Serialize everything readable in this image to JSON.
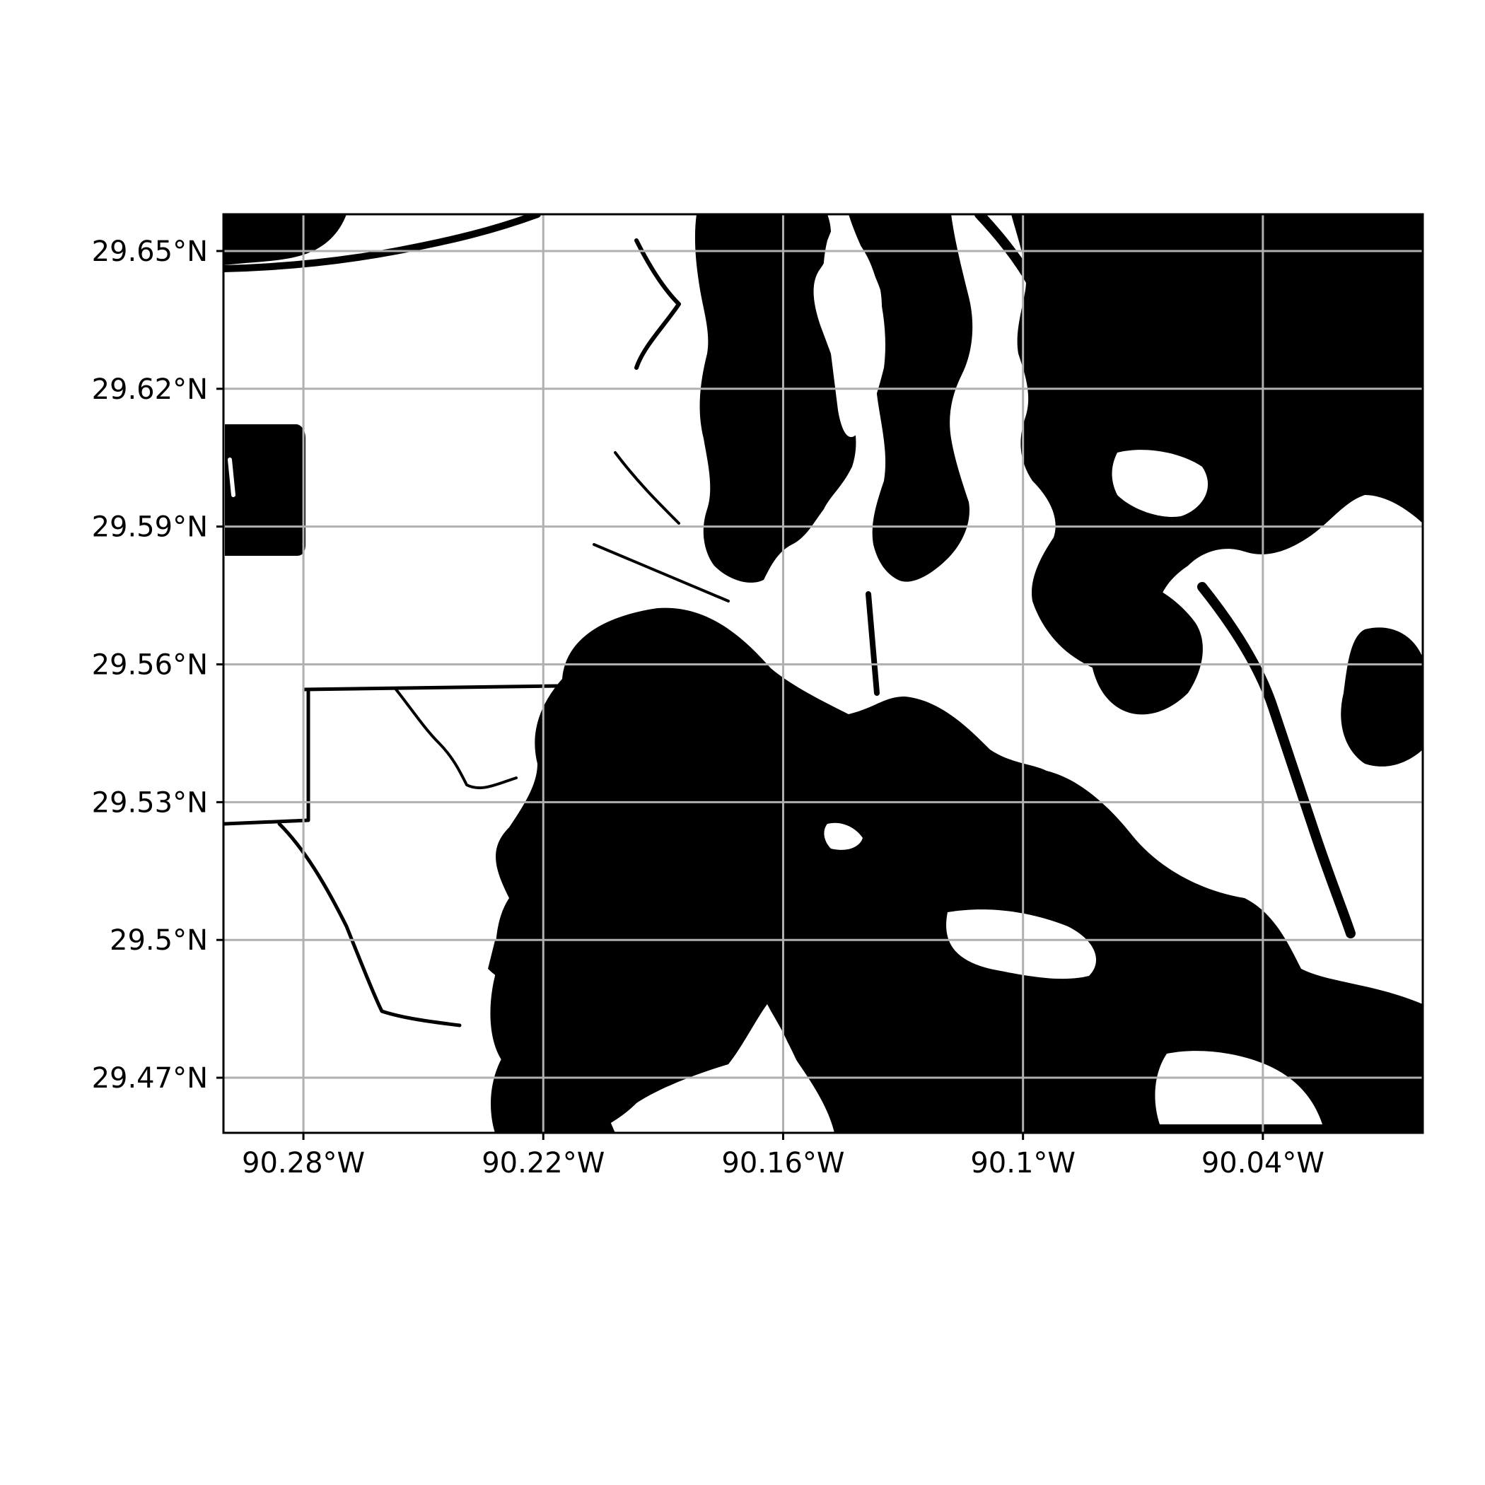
{
  "map": {
    "extent": {
      "lon_min": -90.3,
      "lon_max": -90.0,
      "lat_min": 29.458,
      "lat_max": 29.658
    },
    "colors": {
      "water": "#000000",
      "land": "#ffffff",
      "grid": "#b0b0b0",
      "frame": "#000000"
    },
    "grid": true,
    "x_ticks": [
      {
        "lon": -90.28,
        "label": "90.28°W"
      },
      {
        "lon": -90.22,
        "label": "90.22°W"
      },
      {
        "lon": -90.16,
        "label": "90.16°W"
      },
      {
        "lon": -90.1,
        "label": "90.1°W"
      },
      {
        "lon": -90.04,
        "label": "90.04°W"
      }
    ],
    "y_ticks": [
      {
        "lat": 29.65,
        "label": "29.65°N"
      },
      {
        "lat": 29.62,
        "label": "29.62°N"
      },
      {
        "lat": 29.59,
        "label": "29.59°N"
      },
      {
        "lat": 29.56,
        "label": "29.56°N"
      },
      {
        "lat": 29.53,
        "label": "29.53°N"
      },
      {
        "lat": 29.5,
        "label": "29.5°N"
      },
      {
        "lat": 29.47,
        "label": "29.47°N"
      }
    ]
  }
}
